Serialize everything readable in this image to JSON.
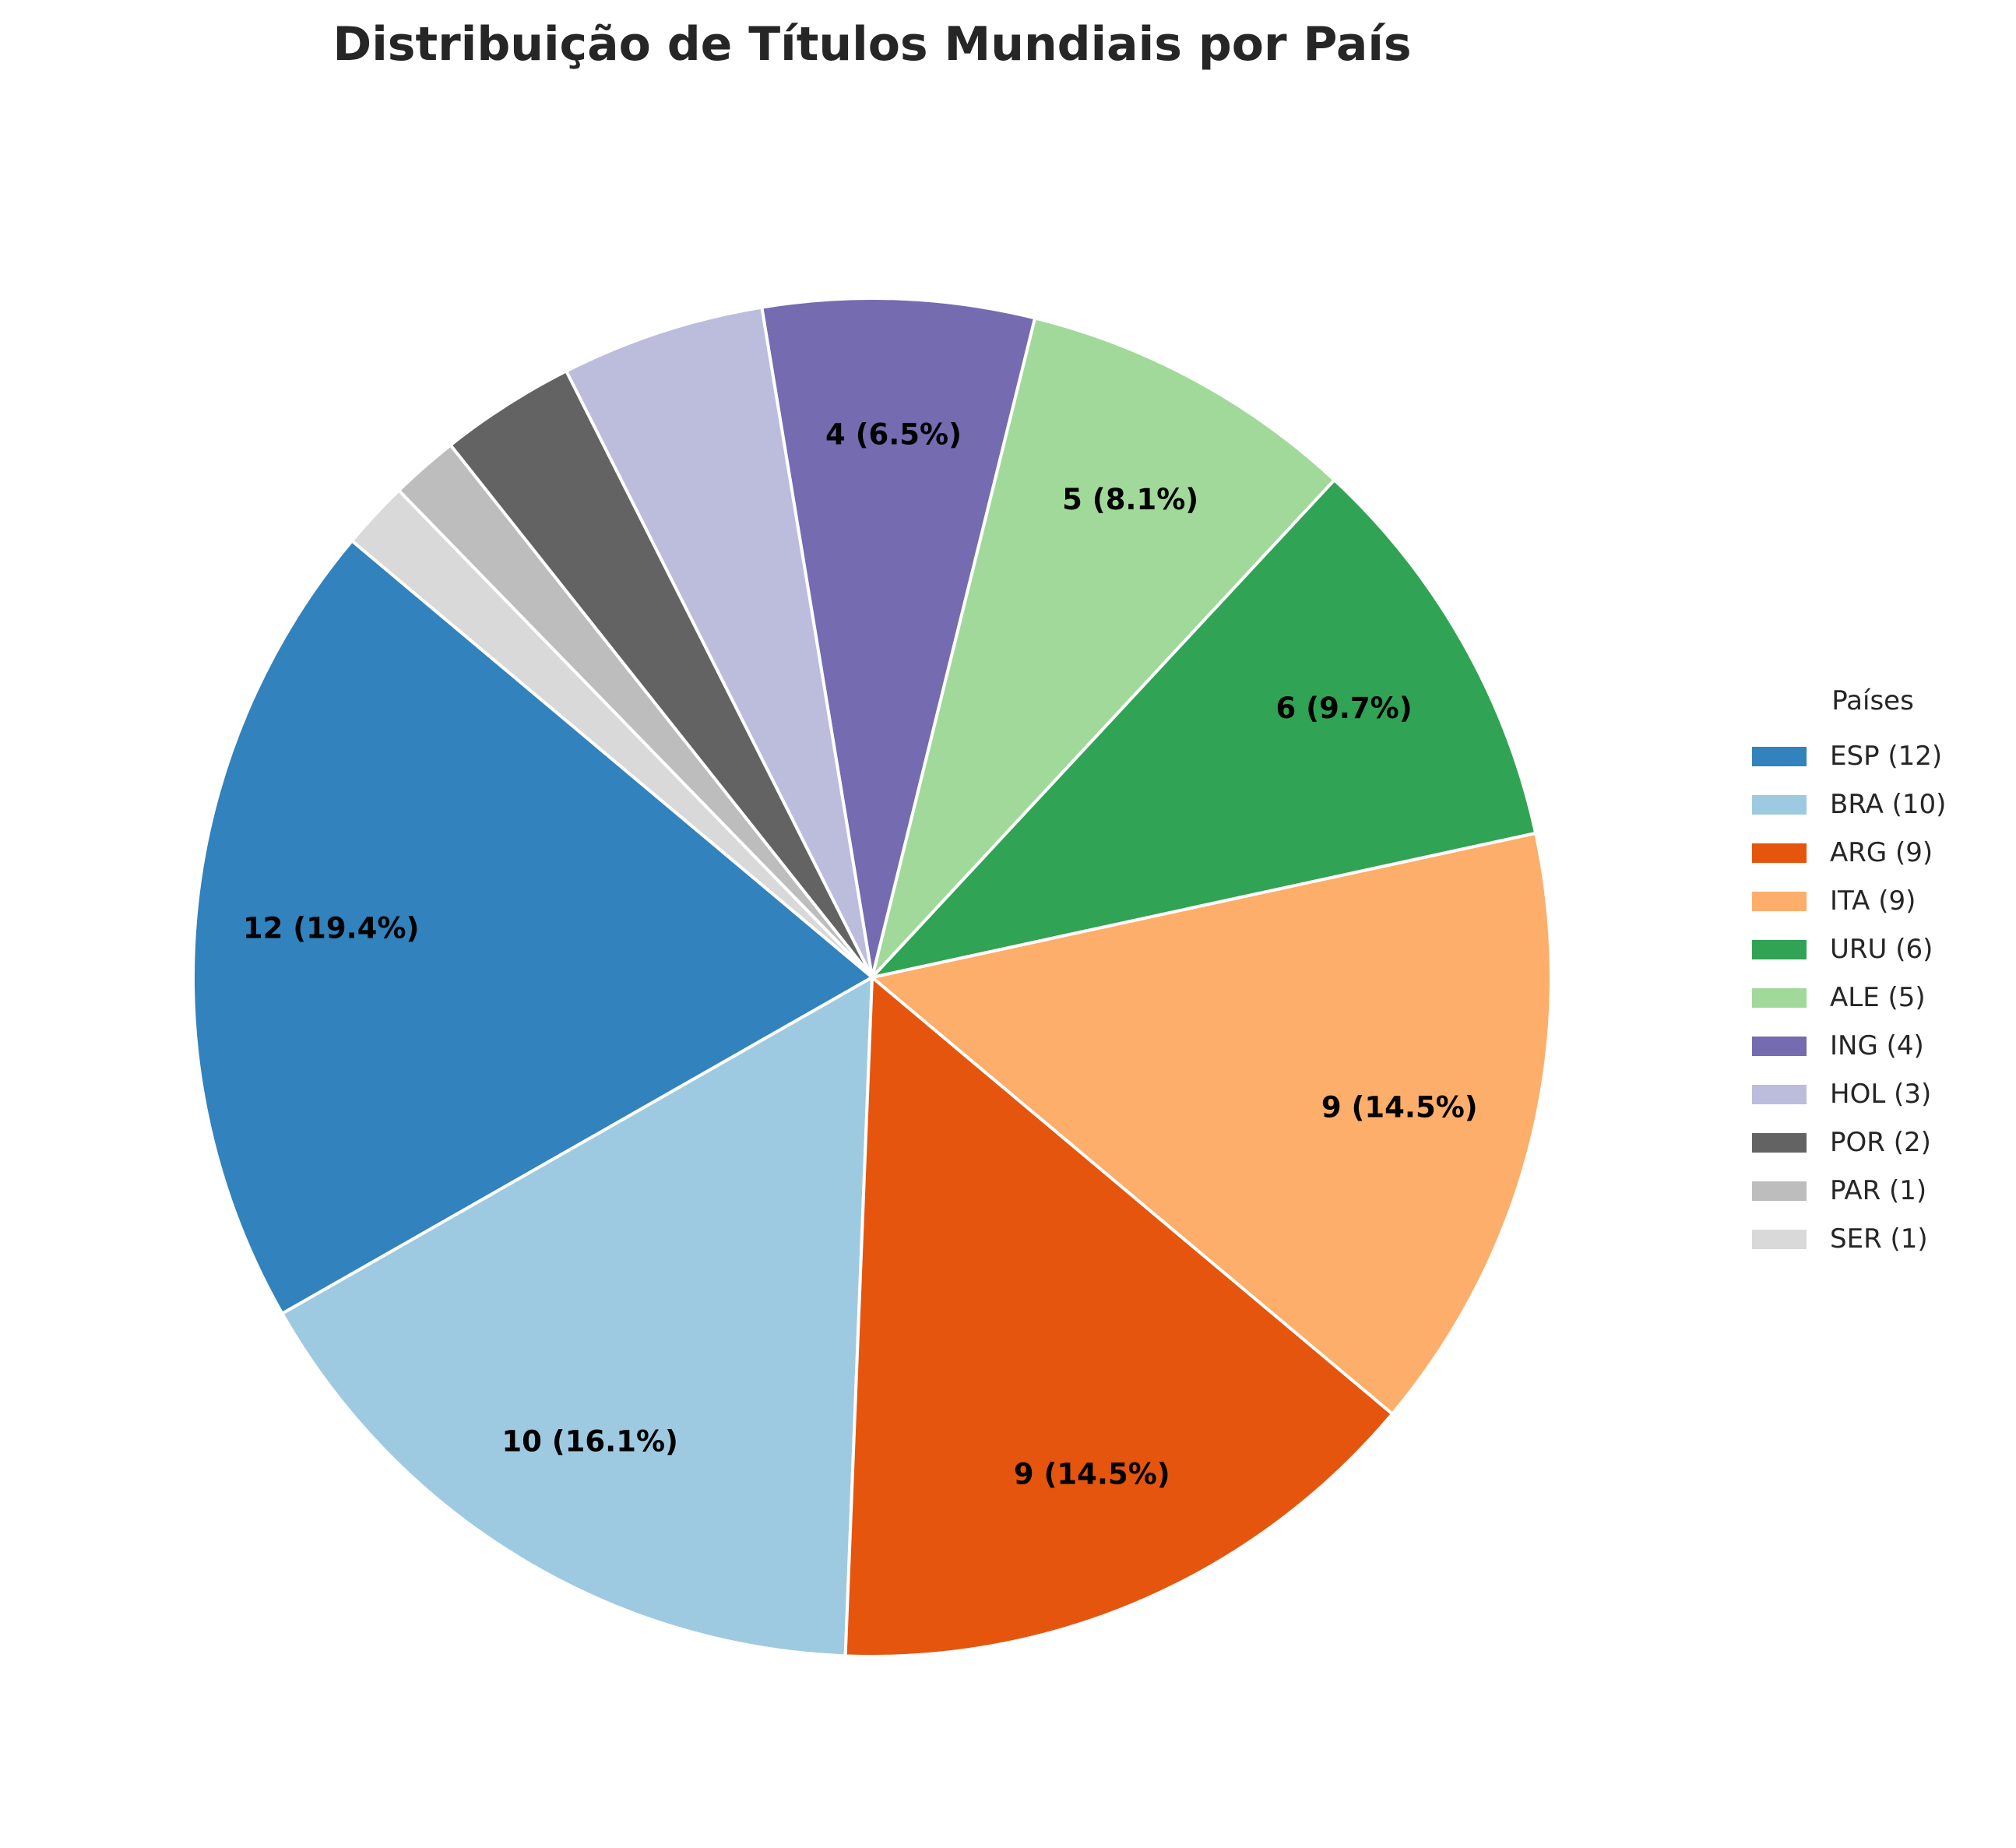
{
  "chart_data": {
    "type": "pie",
    "title": "Distribuição de Títulos Mundiais por País",
    "legend_title": "Países",
    "legend_position": "right",
    "start_angle_deg": 140,
    "direction": "counterclockwise",
    "slices": [
      {
        "category": "ESP",
        "legend": "ESP (12)",
        "value": 12,
        "label": "12 (19.4%)",
        "color": "#3182bd"
      },
      {
        "category": "BRA",
        "legend": "BRA (10)",
        "value": 10,
        "label": "10 (16.1%)",
        "color": "#9ecae1"
      },
      {
        "category": "ARG",
        "legend": "ARG (9)",
        "value": 9,
        "label": "9 (14.5%)",
        "color": "#e6550d"
      },
      {
        "category": "ITA",
        "legend": "ITA (9)",
        "value": 9,
        "label": "9 (14.5%)",
        "color": "#fdae6b"
      },
      {
        "category": "URU",
        "legend": "URU (6)",
        "value": 6,
        "label": "6 (9.7%)",
        "color": "#31a354"
      },
      {
        "category": "ALE",
        "legend": "ALE (5)",
        "value": 5,
        "label": "5 (8.1%)",
        "color": "#a1d99b"
      },
      {
        "category": "ING",
        "legend": "ING (4)",
        "value": 4,
        "label": "4 (6.5%)",
        "color": "#756bb1"
      },
      {
        "category": "HOL",
        "legend": "HOL (3)",
        "value": 3,
        "label": "",
        "color": "#bcbddc"
      },
      {
        "category": "POR",
        "legend": "POR (2)",
        "value": 2,
        "label": "",
        "color": "#636363"
      },
      {
        "category": "PAR",
        "legend": "PAR (1)",
        "value": 1,
        "label": "",
        "color": "#bdbdbd"
      },
      {
        "category": "SER",
        "legend": "SER (1)",
        "value": 1,
        "label": "",
        "color": "#d9d9d9"
      }
    ]
  }
}
